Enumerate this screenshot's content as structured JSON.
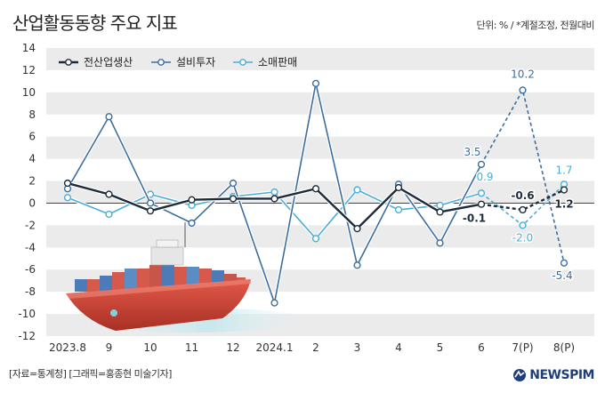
{
  "header": {
    "title": "산업활동동향 주요 지표",
    "unit": "단위: % / *계절조정, 전월대비"
  },
  "footer": {
    "credit": "[자료=통계청] [그래픽=홍종현 미술기자]",
    "logo_text": "NEWSPIM"
  },
  "colors": {
    "production": "#1d2b3a",
    "investment": "#3d6e9e",
    "retail": "#4aaed8",
    "band": "#ebebeb",
    "logo": "#1f3f7a"
  },
  "chart_data": {
    "type": "line",
    "categories": [
      "2023.8",
      "9",
      "10",
      "11",
      "12",
      "2024.1",
      "2",
      "3",
      "4",
      "5",
      "6",
      "7(P)",
      "8(P)"
    ],
    "ylim": [
      -12,
      14
    ],
    "yticks": [
      14,
      12,
      10,
      8,
      6,
      4,
      2,
      0,
      -2,
      -4,
      -6,
      -8,
      -10,
      -12
    ],
    "legend_position": "top-left",
    "series": [
      {
        "name": "전산업생산",
        "color": "#1d2b3a",
        "style": "solid",
        "values": [
          1.8,
          0.8,
          -0.7,
          0.3,
          0.4,
          0.4,
          1.3,
          -2.3,
          1.4,
          -0.8,
          -0.1,
          -0.6,
          1.2
        ]
      },
      {
        "name": "설비투자",
        "color": "#3d6e9e",
        "style": "solid",
        "values": [
          1.3,
          7.8,
          0.0,
          -1.8,
          1.8,
          -9.0,
          10.8,
          -5.6,
          1.7,
          -3.6,
          3.5,
          10.2,
          -5.4
        ]
      },
      {
        "name": "소매판매",
        "color": "#4aaed8",
        "style": "solid",
        "values": [
          0.5,
          -1.0,
          0.8,
          -0.2,
          0.6,
          1.0,
          -3.2,
          1.2,
          -0.6,
          -0.2,
          0.9,
          -2.0,
          1.7
        ]
      }
    ],
    "annotations": [
      {
        "text": "3.5",
        "series": 1,
        "index": 10
      },
      {
        "text": "0.9",
        "series": 2,
        "index": 10
      },
      {
        "text": "-0.1",
        "series": 0,
        "index": 10
      },
      {
        "text": "10.2",
        "series": 1,
        "index": 11
      },
      {
        "text": "-0.6",
        "series": 0,
        "index": 11
      },
      {
        "text": "-2.0",
        "series": 2,
        "index": 11
      },
      {
        "text": "1.7",
        "series": 2,
        "index": 12
      },
      {
        "text": "1.2",
        "series": 0,
        "index": 12
      },
      {
        "text": "-5.4",
        "series": 1,
        "index": 12
      }
    ]
  }
}
